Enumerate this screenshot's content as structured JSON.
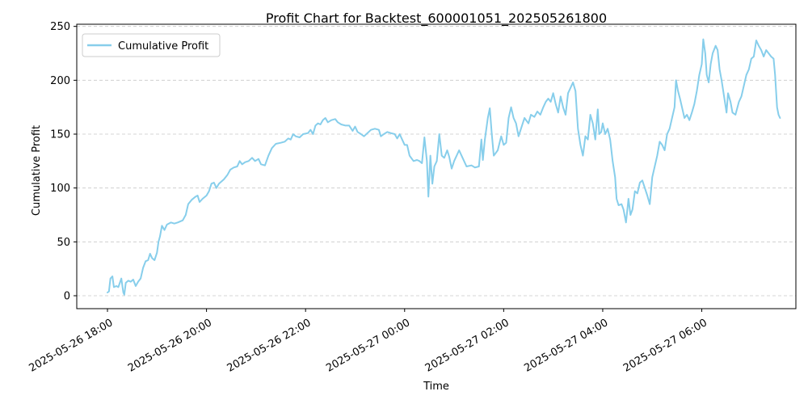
{
  "chart_data": {
    "type": "line",
    "title": "Profit Chart for Backtest_600001051_202505261800",
    "xlabel": "Time",
    "ylabel": "Cumulative Profit",
    "ylim": [
      -12,
      252
    ],
    "xlim_hours": [
      -0.62,
      13.9
    ],
    "grid": "y dashed",
    "legend_position": "top-left",
    "colors": {
      "line": "#87ceeb",
      "grid": "#b0b0b0"
    },
    "y_ticks": [
      0,
      50,
      100,
      150,
      200,
      250
    ],
    "x_ticks": [
      {
        "hours": 0,
        "label": "2025-05-26 18:00"
      },
      {
        "hours": 2,
        "label": "2025-05-26 20:00"
      },
      {
        "hours": 4,
        "label": "2025-05-26 22:00"
      },
      {
        "hours": 6,
        "label": "2025-05-27 00:00"
      },
      {
        "hours": 8,
        "label": "2025-05-27 02:00"
      },
      {
        "hours": 10,
        "label": "2025-05-27 04:00"
      },
      {
        "hours": 12,
        "label": "2025-05-27 06:00"
      }
    ],
    "series": [
      {
        "name": "Cumulative Profit",
        "points": [
          [
            0.0,
            3
          ],
          [
            0.03,
            4
          ],
          [
            0.06,
            16
          ],
          [
            0.1,
            18
          ],
          [
            0.13,
            8
          ],
          [
            0.18,
            9
          ],
          [
            0.22,
            8
          ],
          [
            0.25,
            12
          ],
          [
            0.28,
            16
          ],
          [
            0.32,
            3
          ],
          [
            0.34,
            1
          ],
          [
            0.37,
            12
          ],
          [
            0.42,
            14
          ],
          [
            0.47,
            13
          ],
          [
            0.52,
            15
          ],
          [
            0.57,
            9
          ],
          [
            0.62,
            13
          ],
          [
            0.67,
            16
          ],
          [
            0.72,
            26
          ],
          [
            0.77,
            32
          ],
          [
            0.82,
            33
          ],
          [
            0.86,
            39
          ],
          [
            0.9,
            35
          ],
          [
            0.95,
            33
          ],
          [
            1.0,
            40
          ],
          [
            1.03,
            50
          ],
          [
            1.06,
            55
          ],
          [
            1.1,
            65
          ],
          [
            1.15,
            61
          ],
          [
            1.2,
            66
          ],
          [
            1.28,
            68
          ],
          [
            1.35,
            67
          ],
          [
            1.42,
            68
          ],
          [
            1.52,
            70
          ],
          [
            1.58,
            75
          ],
          [
            1.63,
            85
          ],
          [
            1.7,
            89
          ],
          [
            1.78,
            92
          ],
          [
            1.82,
            93
          ],
          [
            1.86,
            87
          ],
          [
            1.92,
            90
          ],
          [
            2.0,
            93
          ],
          [
            2.05,
            97
          ],
          [
            2.1,
            104
          ],
          [
            2.15,
            105
          ],
          [
            2.2,
            100
          ],
          [
            2.25,
            104
          ],
          [
            2.35,
            108
          ],
          [
            2.42,
            112
          ],
          [
            2.48,
            117
          ],
          [
            2.55,
            119
          ],
          [
            2.62,
            120
          ],
          [
            2.67,
            125
          ],
          [
            2.72,
            122
          ],
          [
            2.78,
            124
          ],
          [
            2.85,
            125
          ],
          [
            2.92,
            128
          ],
          [
            2.98,
            125
          ],
          [
            3.05,
            127
          ],
          [
            3.1,
            122
          ],
          [
            3.18,
            121
          ],
          [
            3.25,
            130
          ],
          [
            3.32,
            137
          ],
          [
            3.4,
            141
          ],
          [
            3.5,
            142
          ],
          [
            3.58,
            143
          ],
          [
            3.65,
            146
          ],
          [
            3.7,
            145
          ],
          [
            3.75,
            150
          ],
          [
            3.8,
            148
          ],
          [
            3.88,
            147
          ],
          [
            3.95,
            150
          ],
          [
            4.05,
            151
          ],
          [
            4.1,
            154
          ],
          [
            4.15,
            150
          ],
          [
            4.2,
            158
          ],
          [
            4.25,
            160
          ],
          [
            4.3,
            159
          ],
          [
            4.35,
            163
          ],
          [
            4.4,
            165
          ],
          [
            4.45,
            161
          ],
          [
            4.52,
            163
          ],
          [
            4.6,
            164
          ],
          [
            4.65,
            161
          ],
          [
            4.72,
            159
          ],
          [
            4.8,
            158
          ],
          [
            4.88,
            158
          ],
          [
            4.95,
            153
          ],
          [
            5.0,
            157
          ],
          [
            5.05,
            152
          ],
          [
            5.12,
            150
          ],
          [
            5.18,
            148
          ],
          [
            5.25,
            151
          ],
          [
            5.32,
            154
          ],
          [
            5.4,
            155
          ],
          [
            5.48,
            154
          ],
          [
            5.52,
            148
          ],
          [
            5.58,
            150
          ],
          [
            5.65,
            152
          ],
          [
            5.72,
            151
          ],
          [
            5.8,
            150
          ],
          [
            5.85,
            146
          ],
          [
            5.9,
            150
          ],
          [
            5.95,
            145
          ],
          [
            6.0,
            140
          ],
          [
            6.05,
            140
          ],
          [
            6.1,
            130
          ],
          [
            6.18,
            125
          ],
          [
            6.25,
            126
          ],
          [
            6.3,
            125
          ],
          [
            6.35,
            123
          ],
          [
            6.4,
            147
          ],
          [
            6.45,
            125
          ],
          [
            6.48,
            92
          ],
          [
            6.52,
            130
          ],
          [
            6.56,
            104
          ],
          [
            6.6,
            120
          ],
          [
            6.65,
            125
          ],
          [
            6.7,
            150
          ],
          [
            6.75,
            130
          ],
          [
            6.8,
            128
          ],
          [
            6.86,
            135
          ],
          [
            6.9,
            129
          ],
          [
            6.95,
            118
          ],
          [
            7.0,
            125
          ],
          [
            7.05,
            130
          ],
          [
            7.1,
            135
          ],
          [
            7.15,
            130
          ],
          [
            7.2,
            125
          ],
          [
            7.25,
            120
          ],
          [
            7.35,
            121
          ],
          [
            7.42,
            119
          ],
          [
            7.5,
            120
          ],
          [
            7.55,
            145
          ],
          [
            7.58,
            126
          ],
          [
            7.62,
            145
          ],
          [
            7.68,
            165
          ],
          [
            7.72,
            174
          ],
          [
            7.76,
            150
          ],
          [
            7.8,
            130
          ],
          [
            7.88,
            135
          ],
          [
            7.95,
            148
          ],
          [
            8.0,
            140
          ],
          [
            8.05,
            142
          ],
          [
            8.1,
            165
          ],
          [
            8.15,
            175
          ],
          [
            8.2,
            165
          ],
          [
            8.25,
            160
          ],
          [
            8.3,
            148
          ],
          [
            8.35,
            155
          ],
          [
            8.42,
            165
          ],
          [
            8.5,
            160
          ],
          [
            8.55,
            168
          ],
          [
            8.62,
            166
          ],
          [
            8.68,
            171
          ],
          [
            8.74,
            168
          ],
          [
            8.8,
            175
          ],
          [
            8.85,
            180
          ],
          [
            8.9,
            183
          ],
          [
            8.95,
            180
          ],
          [
            9.0,
            188
          ],
          [
            9.05,
            178
          ],
          [
            9.1,
            170
          ],
          [
            9.15,
            185
          ],
          [
            9.2,
            175
          ],
          [
            9.25,
            168
          ],
          [
            9.3,
            188
          ],
          [
            9.35,
            193
          ],
          [
            9.4,
            198
          ],
          [
            9.45,
            190
          ],
          [
            9.5,
            155
          ],
          [
            9.55,
            140
          ],
          [
            9.6,
            130
          ],
          [
            9.65,
            148
          ],
          [
            9.7,
            145
          ],
          [
            9.75,
            168
          ],
          [
            9.8,
            160
          ],
          [
            9.85,
            145
          ],
          [
            9.9,
            173
          ],
          [
            9.93,
            150
          ],
          [
            9.97,
            152
          ],
          [
            10.0,
            160
          ],
          [
            10.05,
            150
          ],
          [
            10.1,
            155
          ],
          [
            10.15,
            145
          ],
          [
            10.2,
            125
          ],
          [
            10.25,
            110
          ],
          [
            10.28,
            90
          ],
          [
            10.32,
            84
          ],
          [
            10.38,
            85
          ],
          [
            10.42,
            80
          ],
          [
            10.47,
            68
          ],
          [
            10.52,
            90
          ],
          [
            10.56,
            75
          ],
          [
            10.6,
            80
          ],
          [
            10.65,
            97
          ],
          [
            10.7,
            95
          ],
          [
            10.75,
            105
          ],
          [
            10.8,
            107
          ],
          [
            10.85,
            100
          ],
          [
            10.9,
            93
          ],
          [
            10.95,
            85
          ],
          [
            11.0,
            110
          ],
          [
            11.05,
            120
          ],
          [
            11.1,
            130
          ],
          [
            11.15,
            143
          ],
          [
            11.2,
            140
          ],
          [
            11.25,
            135
          ],
          [
            11.3,
            150
          ],
          [
            11.35,
            155
          ],
          [
            11.4,
            165
          ],
          [
            11.45,
            175
          ],
          [
            11.48,
            200
          ],
          [
            11.52,
            190
          ],
          [
            11.56,
            183
          ],
          [
            11.6,
            175
          ],
          [
            11.65,
            165
          ],
          [
            11.7,
            168
          ],
          [
            11.75,
            163
          ],
          [
            11.8,
            170
          ],
          [
            11.85,
            178
          ],
          [
            11.9,
            190
          ],
          [
            11.95,
            205
          ],
          [
            12.0,
            215
          ],
          [
            12.03,
            238
          ],
          [
            12.07,
            225
          ],
          [
            12.1,
            205
          ],
          [
            12.14,
            198
          ],
          [
            12.18,
            215
          ],
          [
            12.22,
            225
          ],
          [
            12.28,
            232
          ],
          [
            12.32,
            228
          ],
          [
            12.36,
            210
          ],
          [
            12.4,
            200
          ],
          [
            12.45,
            185
          ],
          [
            12.5,
            170
          ],
          [
            12.53,
            188
          ],
          [
            12.58,
            180
          ],
          [
            12.62,
            170
          ],
          [
            12.68,
            168
          ],
          [
            12.75,
            180
          ],
          [
            12.8,
            185
          ],
          [
            12.85,
            195
          ],
          [
            12.9,
            205
          ],
          [
            12.95,
            210
          ],
          [
            13.0,
            220
          ],
          [
            13.05,
            222
          ],
          [
            13.1,
            237
          ],
          [
            13.15,
            232
          ],
          [
            13.2,
            228
          ],
          [
            13.25,
            222
          ],
          [
            13.3,
            228
          ],
          [
            13.35,
            225
          ],
          [
            13.4,
            222
          ],
          [
            13.45,
            220
          ],
          [
            13.48,
            205
          ],
          [
            13.52,
            175
          ],
          [
            13.55,
            168
          ],
          [
            13.58,
            165
          ]
        ]
      }
    ]
  }
}
